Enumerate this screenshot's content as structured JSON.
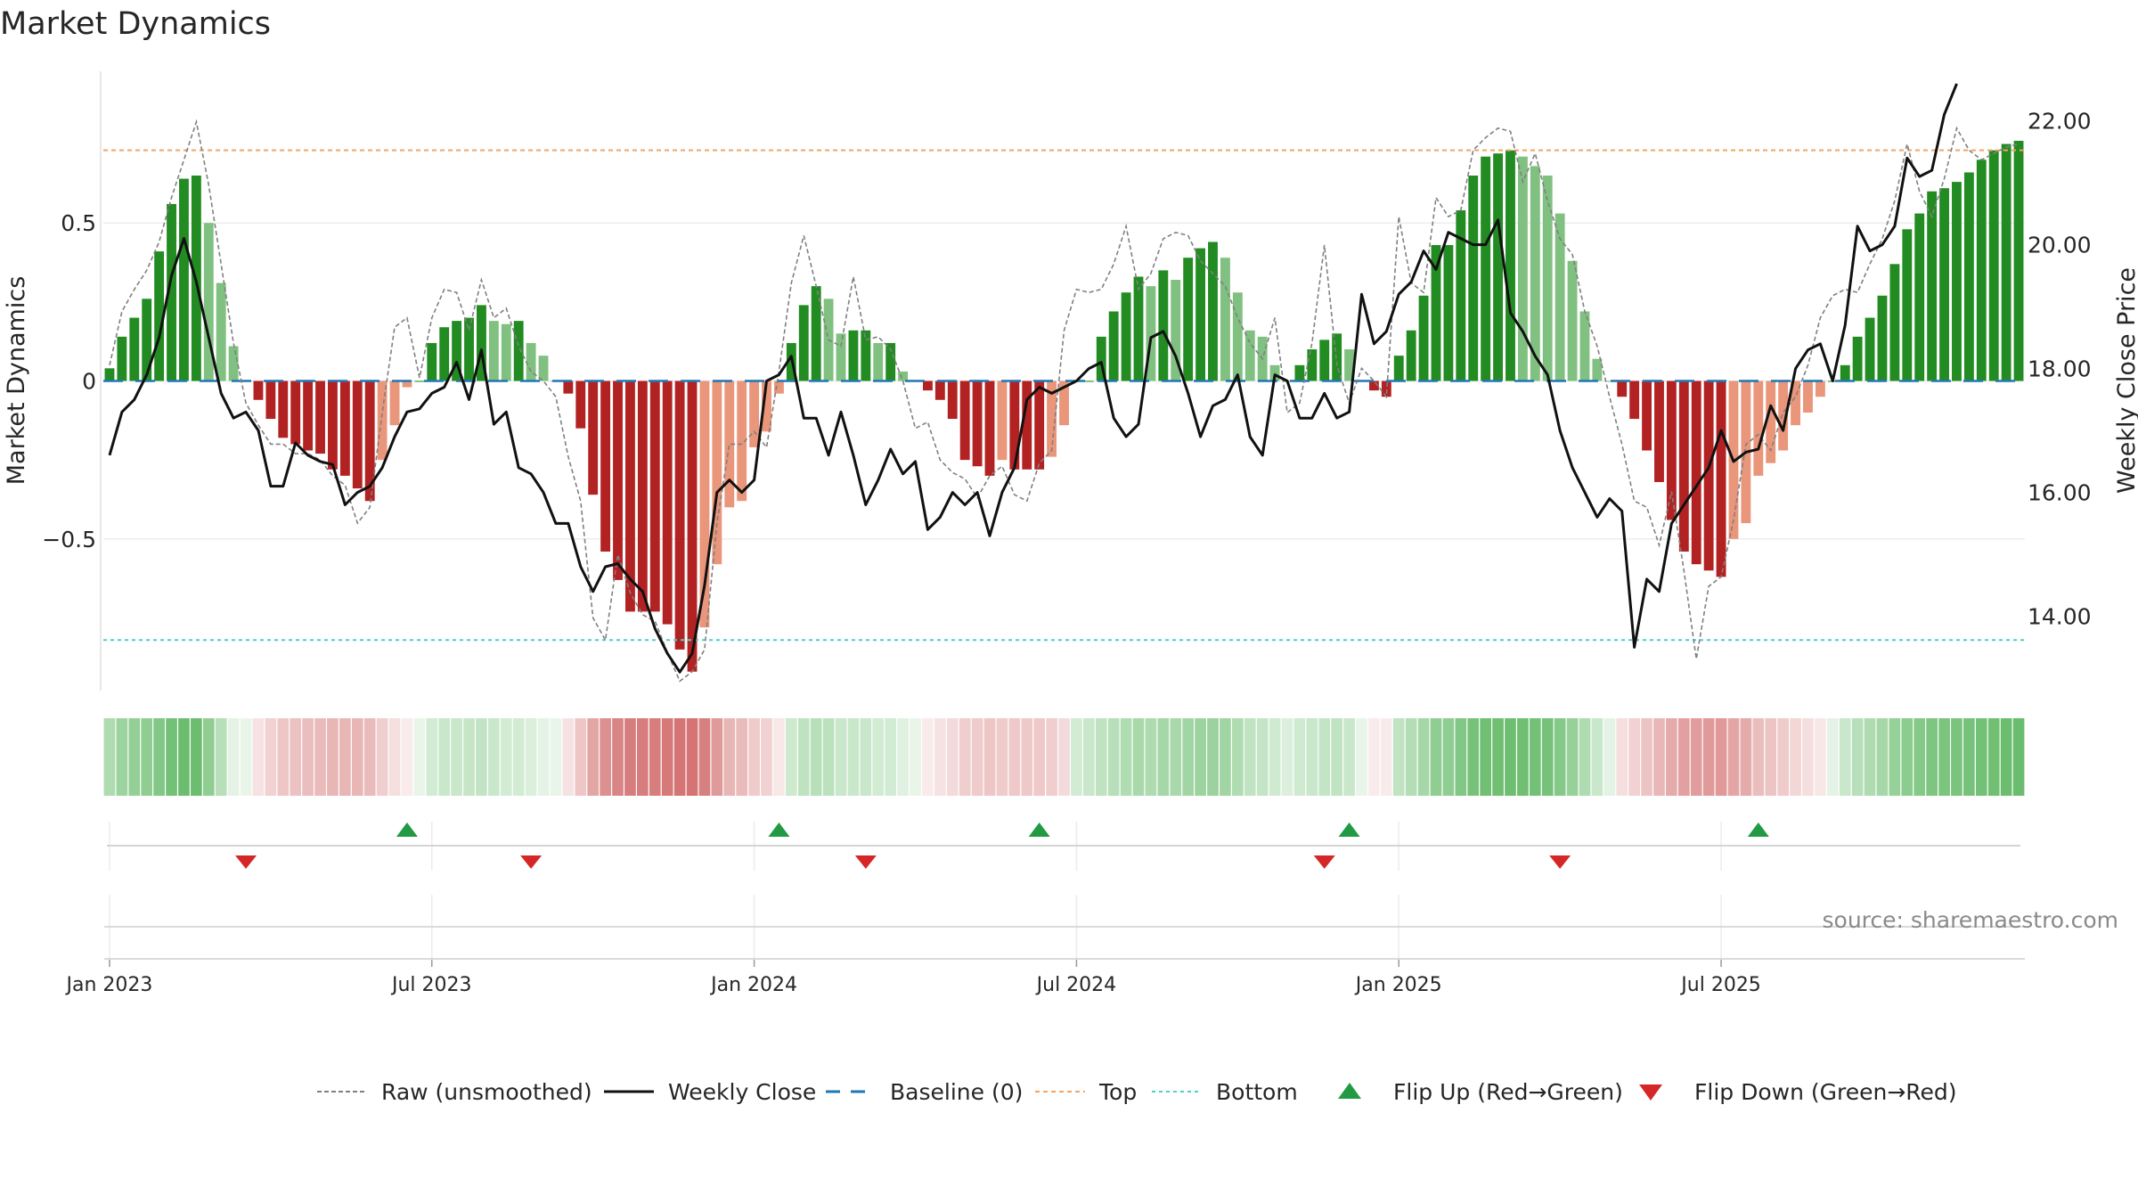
{
  "chart_data": {
    "type": "bar",
    "title": "Market Dynamics",
    "ylabel_left": "Market Dynamics",
    "ylabel_right": "Weekly Close Price",
    "ylim_left": [
      -0.98,
      0.98
    ],
    "ylim_right": [
      12.8,
      22.8
    ],
    "left_ticks": [
      {
        "v": 0.5,
        "label": "0.5"
      },
      {
        "v": 0,
        "label": "0"
      },
      {
        "v": -0.5,
        "label": "−0.5"
      }
    ],
    "right_ticks": [
      {
        "v": 22,
        "label": "22.00"
      },
      {
        "v": 20,
        "label": "20.00"
      },
      {
        "v": 18,
        "label": "18.00"
      },
      {
        "v": 16,
        "label": "16.00"
      },
      {
        "v": 14,
        "label": "14.00"
      }
    ],
    "x_ticks": [
      {
        "week": 1,
        "label": "Jan 2023"
      },
      {
        "week": 27,
        "label": "Jul 2023"
      },
      {
        "week": 53,
        "label": "Jan 2024"
      },
      {
        "week": 79,
        "label": "Jul 2024"
      },
      {
        "week": 105,
        "label": "Jan 2025"
      },
      {
        "week": 131,
        "label": "Jul 2025"
      }
    ],
    "top_level": 0.73,
    "bottom_level": -0.82,
    "baseline": 0,
    "dynamics": [
      0.04,
      0.14,
      0.2,
      0.26,
      0.41,
      0.56,
      0.64,
      0.65,
      0.5,
      0.31,
      0.11,
      0.0,
      -0.06,
      -0.12,
      -0.18,
      -0.2,
      -0.22,
      -0.23,
      -0.28,
      -0.3,
      -0.34,
      -0.38,
      -0.25,
      -0.14,
      -0.02,
      0.0,
      0.12,
      0.17,
      0.19,
      0.2,
      0.24,
      0.19,
      0.18,
      0.19,
      0.12,
      0.08,
      0.0,
      -0.04,
      -0.15,
      -0.36,
      -0.54,
      -0.63,
      -0.73,
      -0.73,
      -0.73,
      -0.77,
      -0.85,
      -0.92,
      -0.78,
      -0.58,
      -0.4,
      -0.38,
      -0.21,
      -0.16,
      -0.04,
      0.12,
      0.24,
      0.3,
      0.26,
      0.15,
      0.16,
      0.16,
      0.12,
      0.12,
      0.03,
      0.0,
      -0.03,
      -0.06,
      -0.12,
      -0.25,
      -0.27,
      -0.3,
      -0.25,
      -0.28,
      -0.28,
      -0.28,
      -0.24,
      -0.14,
      0.0,
      0.0,
      0.14,
      0.22,
      0.28,
      0.33,
      0.3,
      0.35,
      0.32,
      0.39,
      0.42,
      0.44,
      0.39,
      0.28,
      0.16,
      0.14,
      0.05,
      0.0,
      0.05,
      0.1,
      0.13,
      0.15,
      0.1,
      0.0,
      -0.03,
      -0.05,
      0.08,
      0.16,
      0.27,
      0.43,
      0.43,
      0.54,
      0.65,
      0.71,
      0.72,
      0.73,
      0.71,
      0.68,
      0.65,
      0.53,
      0.38,
      0.22,
      0.07,
      0.0,
      -0.05,
      -0.12,
      -0.22,
      -0.32,
      -0.44,
      -0.54,
      -0.58,
      -0.6,
      -0.62,
      -0.5,
      -0.45,
      -0.3,
      -0.26,
      -0.22,
      -0.14,
      -0.1,
      -0.05,
      0.0,
      0.05,
      0.14,
      0.2,
      0.27,
      0.37,
      0.48,
      0.53,
      0.6,
      0.61,
      0.63,
      0.66,
      0.7,
      0.73,
      0.75,
      0.76
    ],
    "raw": [
      0.05,
      0.22,
      0.29,
      0.35,
      0.44,
      0.58,
      0.7,
      0.82,
      0.62,
      0.37,
      0.12,
      -0.07,
      -0.14,
      -0.2,
      -0.2,
      -0.23,
      -0.23,
      -0.25,
      -0.3,
      -0.33,
      -0.45,
      -0.4,
      -0.1,
      0.17,
      0.2,
      0.01,
      0.2,
      0.29,
      0.28,
      0.16,
      0.32,
      0.2,
      0.23,
      0.11,
      0.03,
      0.0,
      -0.05,
      -0.24,
      -0.38,
      -0.75,
      -0.82,
      -0.55,
      -0.67,
      -0.74,
      -0.76,
      -0.86,
      -0.95,
      -0.92,
      -0.85,
      -0.45,
      -0.2,
      -0.2,
      -0.16,
      -0.21,
      0.03,
      0.31,
      0.46,
      0.3,
      0.13,
      0.11,
      0.33,
      0.13,
      0.14,
      0.1,
      0.0,
      -0.15,
      -0.13,
      -0.25,
      -0.29,
      -0.31,
      -0.37,
      -0.3,
      -0.27,
      -0.36,
      -0.38,
      -0.26,
      -0.22,
      0.16,
      0.29,
      0.28,
      0.29,
      0.37,
      0.49,
      0.29,
      0.34,
      0.45,
      0.47,
      0.46,
      0.38,
      0.34,
      0.3,
      0.2,
      0.12,
      0.07,
      0.2,
      -0.1,
      -0.07,
      0.12,
      0.43,
      0.05,
      -0.07,
      0.04,
      0.0,
      -0.05,
      0.52,
      0.31,
      0.28,
      0.58,
      0.52,
      0.54,
      0.73,
      0.77,
      0.8,
      0.79,
      0.63,
      0.72,
      0.57,
      0.45,
      0.4,
      0.22,
      0.11,
      -0.05,
      -0.2,
      -0.38,
      -0.4,
      -0.52,
      -0.35,
      -0.6,
      -0.88,
      -0.65,
      -0.62,
      -0.44,
      -0.2,
      -0.17,
      -0.22,
      -0.1,
      -0.05,
      0.05,
      0.2,
      0.27,
      0.29,
      0.28,
      0.37,
      0.45,
      0.57,
      0.75,
      0.6,
      0.52,
      0.64,
      0.8,
      0.73,
      0.7,
      0.72,
      0.74,
      0.75
    ],
    "weekly_close": [
      16.6,
      17.3,
      17.5,
      17.9,
      18.5,
      19.5,
      20.1,
      19.4,
      18.5,
      17.6,
      17.2,
      17.3,
      17.0,
      16.1,
      16.1,
      16.8,
      16.6,
      16.5,
      16.45,
      15.8,
      16.0,
      16.1,
      16.4,
      16.9,
      17.3,
      17.35,
      17.6,
      17.7,
      18.1,
      17.5,
      18.3,
      17.1,
      17.3,
      16.4,
      16.3,
      16.0,
      15.5,
      15.5,
      14.8,
      14.4,
      14.8,
      14.85,
      14.6,
      14.4,
      13.8,
      13.4,
      13.1,
      13.4,
      14.5,
      16.0,
      16.2,
      16.0,
      16.2,
      17.8,
      17.9,
      18.2,
      17.2,
      17.2,
      16.6,
      17.3,
      16.6,
      15.8,
      16.2,
      16.7,
      16.3,
      16.5,
      15.4,
      15.6,
      16.0,
      15.8,
      16.0,
      15.3,
      16.0,
      16.4,
      17.5,
      17.7,
      17.6,
      17.7,
      17.8,
      18.0,
      18.1,
      17.2,
      16.9,
      17.1,
      18.5,
      18.6,
      18.2,
      17.6,
      16.9,
      17.4,
      17.5,
      17.9,
      16.9,
      16.6,
      17.9,
      17.8,
      17.2,
      17.2,
      17.6,
      17.2,
      17.3,
      19.2,
      18.4,
      18.6,
      19.2,
      19.4,
      19.9,
      19.6,
      20.2,
      20.1,
      20.0,
      20.0,
      20.4,
      18.9,
      18.6,
      18.2,
      17.9,
      17.0,
      16.4,
      16.0,
      15.6,
      15.9,
      15.7,
      13.5,
      14.6,
      14.4,
      15.5,
      15.8,
      16.1,
      16.4,
      17.0,
      16.5,
      16.65,
      16.7,
      17.4,
      17.0,
      18.0,
      18.3,
      18.4,
      17.8,
      18.7,
      20.3,
      19.9,
      20.0,
      20.3,
      21.4,
      21.1,
      21.2,
      22.1,
      22.6
    ],
    "heat_levels": [
      0.45,
      0.55,
      0.6,
      0.62,
      0.7,
      0.78,
      0.82,
      0.82,
      0.62,
      0.4,
      0.15,
      0.12,
      0.18,
      0.28,
      0.35,
      0.38,
      0.4,
      0.42,
      0.45,
      0.45,
      0.45,
      0.42,
      0.3,
      0.2,
      0.08,
      0.05,
      0.25,
      0.3,
      0.3,
      0.32,
      0.34,
      0.3,
      0.25,
      0.25,
      0.2,
      0.15,
      0.1,
      0.18,
      0.35,
      0.55,
      0.68,
      0.75,
      0.8,
      0.8,
      0.8,
      0.82,
      0.85,
      0.85,
      0.78,
      0.62,
      0.45,
      0.42,
      0.32,
      0.28,
      0.15,
      0.28,
      0.36,
      0.4,
      0.38,
      0.3,
      0.3,
      0.3,
      0.25,
      0.25,
      0.18,
      0.1,
      0.12,
      0.18,
      0.22,
      0.3,
      0.32,
      0.35,
      0.32,
      0.33,
      0.33,
      0.33,
      0.3,
      0.22,
      0.25,
      0.3,
      0.36,
      0.4,
      0.44,
      0.48,
      0.45,
      0.5,
      0.48,
      0.52,
      0.55,
      0.56,
      0.52,
      0.44,
      0.35,
      0.33,
      0.26,
      0.2,
      0.26,
      0.3,
      0.33,
      0.35,
      0.3,
      0.1,
      0.1,
      0.12,
      0.35,
      0.42,
      0.5,
      0.62,
      0.62,
      0.7,
      0.76,
      0.8,
      0.8,
      0.81,
      0.8,
      0.78,
      0.76,
      0.68,
      0.58,
      0.45,
      0.3,
      0.15,
      0.2,
      0.28,
      0.36,
      0.44,
      0.52,
      0.58,
      0.6,
      0.62,
      0.63,
      0.55,
      0.52,
      0.4,
      0.36,
      0.32,
      0.25,
      0.2,
      0.15,
      0.15,
      0.3,
      0.4,
      0.45,
      0.5,
      0.58,
      0.64,
      0.68,
      0.72,
      0.73,
      0.74,
      0.76,
      0.78,
      0.8,
      0.82,
      0.83
    ],
    "flip_up_weeks": [
      25,
      55,
      76,
      101,
      134
    ],
    "flip_down_weeks": [
      12,
      35,
      62,
      99,
      118
    ],
    "legend": [
      {
        "key": "raw",
        "label": "Raw (unsmoothed)"
      },
      {
        "key": "close",
        "label": "Weekly Close"
      },
      {
        "key": "baseline",
        "label": "Baseline (0)"
      },
      {
        "key": "top",
        "label": "Top"
      },
      {
        "key": "bottom",
        "label": "Bottom"
      },
      {
        "key": "flipup",
        "label": "Flip Up (Red→Green)"
      },
      {
        "key": "flipdown",
        "label": "Flip Down (Green→Red)"
      }
    ],
    "source": "source: sharemaestro.com"
  },
  "colors": {
    "green_strong": "#228b22",
    "green_light": "#80c080",
    "red_strong": "#b22222",
    "red_light": "#e9967a",
    "top_line": "#f4a460",
    "bottom_line": "#48d1cc",
    "baseline": "#1f77b4",
    "close_line": "#111111",
    "raw_line": "#808080",
    "flip_up": "#229a44",
    "flip_down": "#d62728"
  }
}
